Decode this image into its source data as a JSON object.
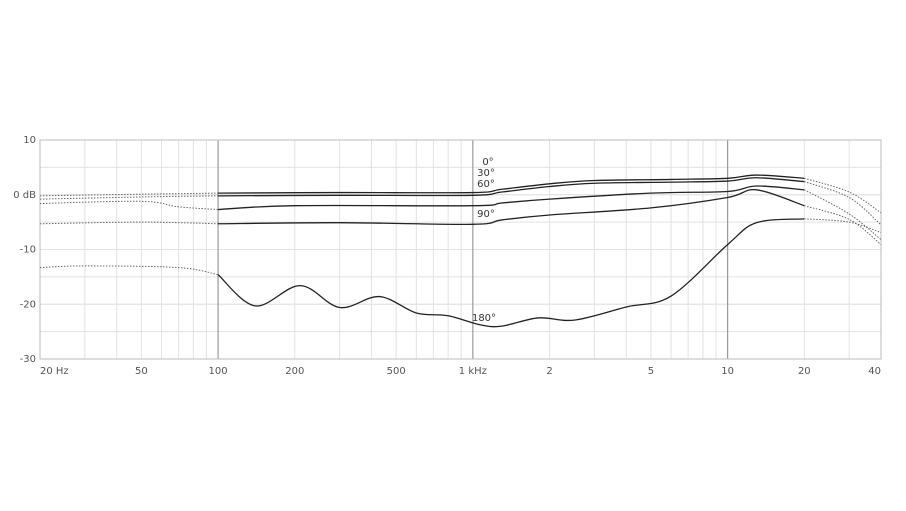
{
  "chart_data": {
    "type": "line",
    "log_x": true,
    "xlim": [
      20,
      40000
    ],
    "ylim": [
      -30,
      10
    ],
    "xticks": [
      {
        "value": 20,
        "label": "20 Hz"
      },
      50,
      100,
      200,
      500,
      {
        "value": 1000,
        "label": "1 kHz"
      },
      {
        "value": 2000,
        "label": "2"
      },
      {
        "value": 5000,
        "label": "5"
      },
      {
        "value": 10000,
        "label": "10"
      },
      {
        "value": 20000,
        "label": "20"
      },
      {
        "value": 40000,
        "label": "40"
      }
    ],
    "yticks": [
      10,
      {
        "value": 0,
        "label": "0 dB"
      },
      -10,
      -20,
      -30
    ],
    "x_grid": [
      30,
      40,
      50,
      60,
      70,
      80,
      90,
      200,
      300,
      400,
      500,
      600,
      700,
      800,
      900,
      2000,
      3000,
      4000,
      5000,
      6000,
      7000,
      8000,
      9000,
      20000,
      30000,
      40000
    ],
    "x_major_grid": [
      100,
      1000,
      10000
    ],
    "y_grid": [
      5,
      0,
      -5,
      -10,
      -15,
      -20,
      -25
    ],
    "dotted_outside": [
      100,
      20000
    ],
    "series": [
      {
        "name": "0°",
        "color": "#222222",
        "x": [
          20,
          50,
          100,
          300,
          1000,
          1300,
          2000,
          3000,
          6000,
          10000,
          13000,
          20000,
          30000,
          40000
        ],
        "values": [
          -0.2,
          0.1,
          0.3,
          0.4,
          0.4,
          1.0,
          2.0,
          2.6,
          2.8,
          3.0,
          3.6,
          3.0,
          0.5,
          -3.3
        ]
      },
      {
        "name": "30°",
        "color": "#222222",
        "x": [
          20,
          50,
          100,
          300,
          1000,
          1300,
          2000,
          3000,
          6000,
          10000,
          13000,
          20000,
          30000,
          40000
        ],
        "values": [
          -0.8,
          -0.4,
          -0.2,
          -0.1,
          -0.1,
          0.5,
          1.5,
          2.1,
          2.3,
          2.5,
          3.1,
          2.4,
          -0.5,
          -5.5
        ]
      },
      {
        "name": "60°",
        "color": "#222222",
        "x": [
          20,
          50,
          70,
          100,
          200,
          1000,
          1300,
          2000,
          5000,
          10000,
          13000,
          20000,
          30000,
          40000
        ],
        "values": [
          -1.6,
          -1.2,
          -2.2,
          -2.7,
          -2.0,
          -2.0,
          -1.5,
          -0.8,
          0.3,
          0.6,
          1.6,
          0.9,
          -3.5,
          -8.2
        ]
      },
      {
        "name": "90°",
        "color": "#222222",
        "x": [
          20,
          50,
          100,
          300,
          1000,
          1300,
          2000,
          5000,
          10000,
          13000,
          20000,
          30000,
          40000
        ],
        "values": [
          -5.3,
          -5.0,
          -5.3,
          -5.1,
          -5.4,
          -4.6,
          -3.7,
          -2.4,
          -0.5,
          0.9,
          -2.0,
          -4.5,
          -9.1
        ]
      },
      {
        "name": "180°",
        "color": "#222222",
        "x": [
          20,
          30,
          70,
          100,
          140,
          210,
          300,
          430,
          600,
          800,
          1200,
          1800,
          2500,
          4000,
          6000,
          10000,
          13000,
          20000,
          30000,
          40000
        ],
        "values": [
          -13.3,
          -13.0,
          -13.3,
          -14.6,
          -20.3,
          -16.6,
          -20.6,
          -18.6,
          -21.6,
          -22.1,
          -24.1,
          -22.5,
          -22.9,
          -20.5,
          -18.5,
          -9.1,
          -5.1,
          -4.4,
          -5.0,
          -6.9
        ]
      }
    ]
  }
}
